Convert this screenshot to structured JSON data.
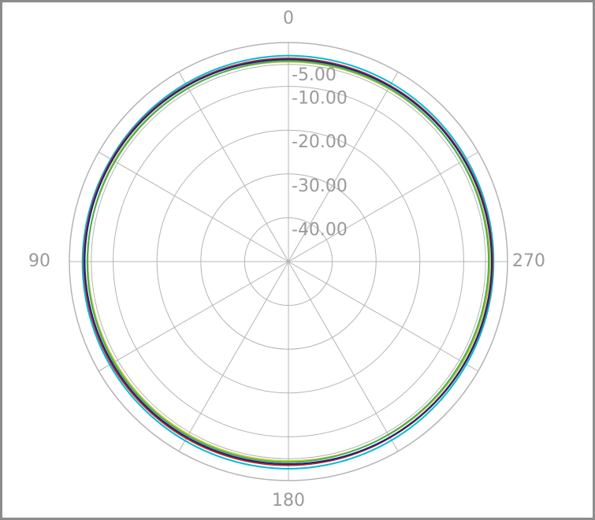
{
  "chart_data": {
    "type": "polar",
    "title": "",
    "angle_direction": "counterclockwise",
    "zero_location": "top",
    "angle_tick_labels": [
      "0",
      "90",
      "180",
      "270"
    ],
    "angle_spoke_step_deg": 30,
    "radial_range": [
      -50,
      0
    ],
    "radial_tick_values": [
      -40,
      -30,
      -20,
      -10,
      -5,
      0
    ],
    "radial_tick_labels": [
      "-40.00",
      "-30.00",
      "-20.00",
      "-10.00",
      "-5.00"
    ],
    "grid": true,
    "legend": "none",
    "colors": {
      "frame": "#8c8c8c",
      "grid": "#b4b4b4",
      "labels": "#9a9a9a"
    },
    "series": [
      {
        "color": "#00bcd4",
        "angles_deg": [
          0,
          30,
          60,
          90,
          120,
          150,
          180,
          210,
          240,
          270,
          300,
          330
        ],
        "values": [
          -3.0,
          -3.1,
          -3.2,
          -3.0,
          -2.9,
          -2.8,
          -2.7,
          -2.9,
          -3.1,
          -3.2,
          -3.1,
          -3.0
        ]
      },
      {
        "color": "#c62828",
        "angles_deg": [
          0,
          30,
          60,
          90,
          120,
          150,
          180,
          210,
          240,
          270,
          300,
          330
        ],
        "values": [
          -3.6,
          -3.5,
          -3.4,
          -3.3,
          -3.3,
          -3.4,
          -3.5,
          -3.6,
          -3.5,
          -3.4,
          -3.5,
          -3.6
        ]
      },
      {
        "color": "#1a237e",
        "angles_deg": [
          0,
          30,
          60,
          90,
          120,
          150,
          180,
          210,
          240,
          270,
          300,
          330
        ],
        "values": [
          -3.9,
          -3.7,
          -3.6,
          -3.5,
          -3.6,
          -3.7,
          -3.8,
          -3.7,
          -3.6,
          -3.6,
          -3.7,
          -3.8
        ]
      },
      {
        "color": "#c0ca33",
        "angles_deg": [
          0,
          30,
          60,
          90,
          120,
          150,
          180,
          210,
          240,
          270,
          300,
          330
        ],
        "values": [
          -4.4,
          -4.2,
          -4.1,
          -4.2,
          -4.3,
          -4.4,
          -4.5,
          -4.3,
          -4.1,
          -4.0,
          -4.2,
          -4.4
        ]
      },
      {
        "color": "#4caf50",
        "angles_deg": [
          0,
          30,
          60,
          90,
          120,
          150,
          180,
          210,
          240,
          270,
          300,
          330
        ],
        "values": [
          -4.2,
          -4.3,
          -4.3,
          -4.1,
          -4.0,
          -4.1,
          -4.2,
          -4.4,
          -4.4,
          -4.3,
          -4.3,
          -4.2
        ]
      }
    ]
  }
}
